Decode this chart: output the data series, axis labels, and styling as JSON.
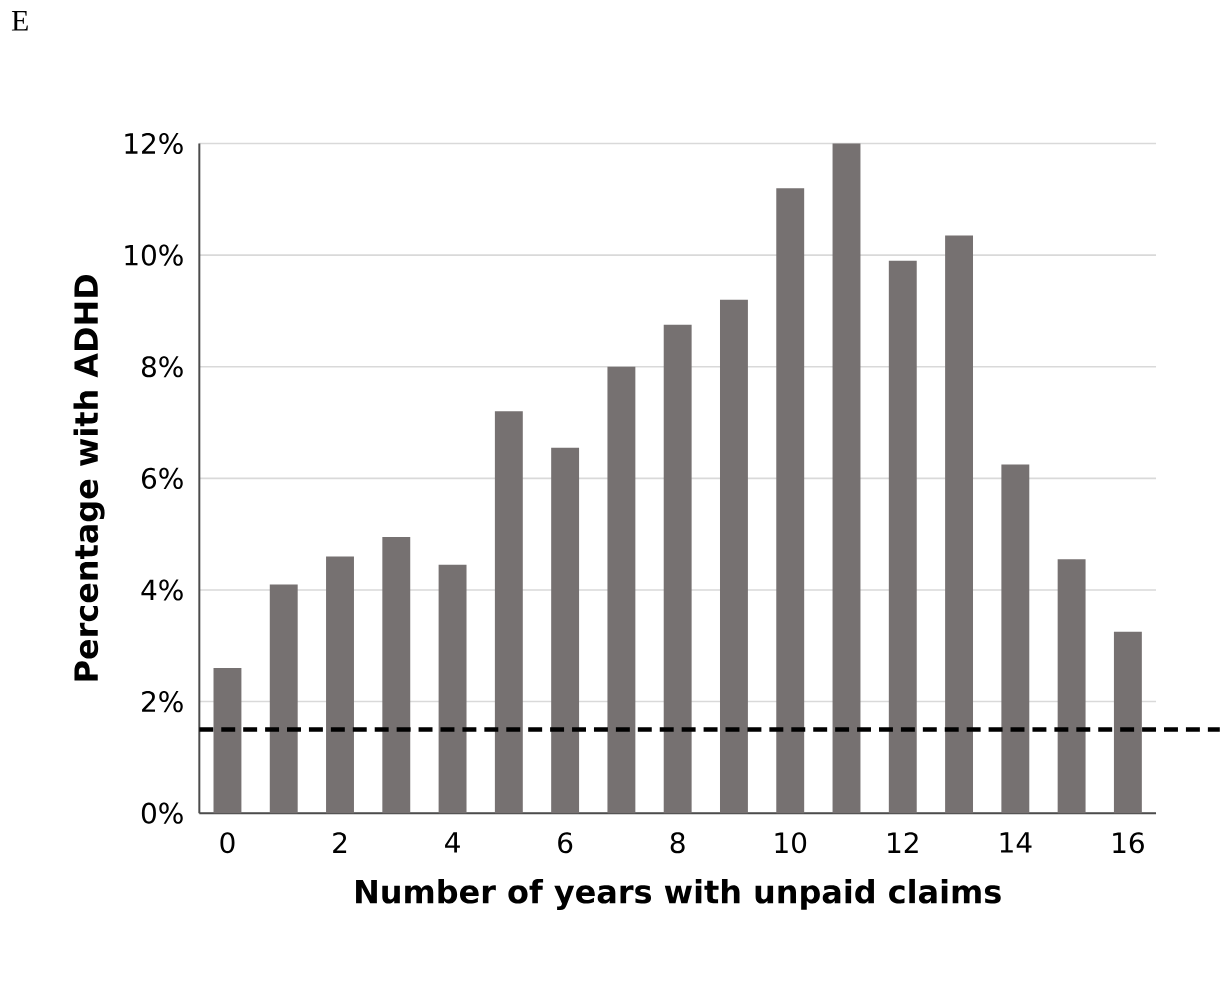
{
  "chart_data": {
    "type": "bar",
    "annotations": [
      "E"
    ],
    "xlabel": "Number of years with unpaid claims",
    "ylabel": "Percentage with ADHD",
    "categories": [
      "0",
      null,
      "2",
      null,
      "4",
      null,
      "6",
      null,
      "8",
      null,
      "10",
      null,
      "12",
      null,
      "14",
      null,
      "16"
    ],
    "values": [
      2.6,
      4.1,
      4.6,
      4.95,
      4.45,
      7.2,
      6.55,
      8.0,
      8.75,
      9.2,
      11.2,
      12.0,
      9.9,
      10.35,
      6.25,
      4.55,
      3.25
    ],
    "color": "#767171",
    "ylim": [
      0,
      12
    ],
    "yticks": [
      {
        "value": 0,
        "label": "0%"
      },
      {
        "value": 2,
        "label": "2%"
      },
      {
        "value": 4,
        "label": "4%"
      },
      {
        "value": 6,
        "label": "6%"
      },
      {
        "value": 8,
        "label": "8%"
      },
      {
        "value": 10,
        "label": "10%"
      },
      {
        "value": 12,
        "label": "12%"
      }
    ],
    "grid": "y",
    "ref_lines": [
      {
        "axis": "y",
        "value": 1.5,
        "color": "#000000",
        "line_style": "dashed"
      }
    ]
  }
}
